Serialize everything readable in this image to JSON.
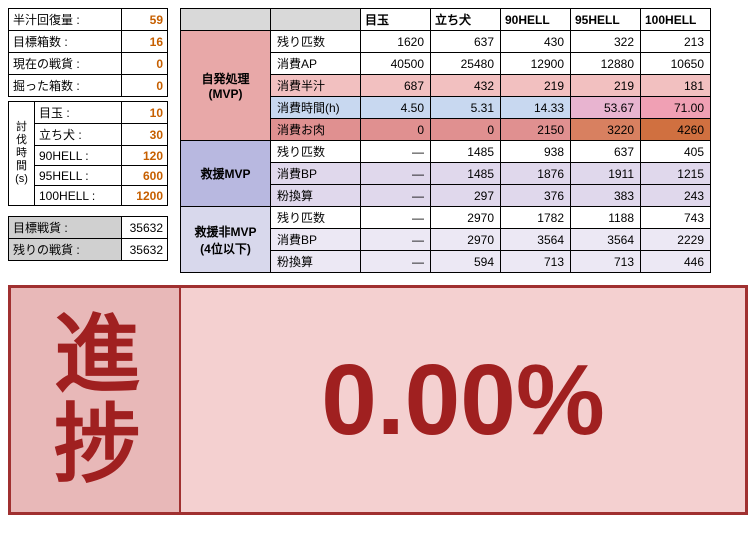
{
  "left": {
    "params": [
      {
        "label": "半汁回復量 :",
        "value": 59
      },
      {
        "label": "目標箱数 :",
        "value": 16
      },
      {
        "label": "現在の戦貨 :",
        "value": 0
      },
      {
        "label": "掘った箱数 :",
        "value": 0
      }
    ],
    "time_header": "討\n伐\n時\n間\n(s)",
    "times": [
      {
        "label": "目玉 :",
        "value": 10
      },
      {
        "label": "立ち犬 :",
        "value": 30
      },
      {
        "label": "90HELL :",
        "value": 120
      },
      {
        "label": "95HELL :",
        "value": 600
      },
      {
        "label": "100HELL :",
        "value": 1200
      }
    ],
    "totals": [
      {
        "label": "目標戦貨 :",
        "value": 35632
      },
      {
        "label": "残りの戦貨 :",
        "value": 35632
      }
    ]
  },
  "main": {
    "columns": [
      "目玉",
      "立ち犬",
      "90HELL",
      "95HELL",
      "100HELL"
    ],
    "sections": [
      {
        "title": "自発処理\n(MVP)",
        "style": "sec-mvp",
        "rows": [
          {
            "label": "残り匹数",
            "cells": [
              "1620",
              "637",
              "430",
              "322",
              "213"
            ],
            "cls": ""
          },
          {
            "label": "消費AP",
            "cells": [
              "40500",
              "25480",
              "12900",
              "12880",
              "10650"
            ],
            "cls": ""
          },
          {
            "label": "消費半汁",
            "cells": [
              "687",
              "432",
              "219",
              "219",
              "181"
            ],
            "cls": "row-pink"
          },
          {
            "label": "消費時間(h)",
            "cells": [
              "4.50",
              "5.31",
              "14.33",
              "53.67",
              "71.00"
            ],
            "cls": "row-blue",
            "cellcls": [
              "",
              "",
              "",
              "warn1",
              "warn2"
            ]
          },
          {
            "label": "消費お肉",
            "cells": [
              "0",
              "0",
              "2150",
              "3220",
              "4260"
            ],
            "cls": "row-red",
            "cellcls": [
              "",
              "",
              "",
              "hot1",
              "hot2"
            ]
          }
        ]
      },
      {
        "title": "救援MVP",
        "style": "sec-rmvp",
        "rows": [
          {
            "label": "残り匹数",
            "cells": [
              "—",
              "1485",
              "938",
              "637",
              "405"
            ],
            "cls": ""
          },
          {
            "label": "消費BP",
            "cells": [
              "—",
              "1485",
              "1876",
              "1911",
              "1215"
            ],
            "cls": "row-lpur"
          },
          {
            "label": "粉換算",
            "cells": [
              "—",
              "297",
              "376",
              "383",
              "243"
            ],
            "cls": "row-lpur"
          }
        ]
      },
      {
        "title": "救援非MVP\n(4位以下)",
        "style": "sec-nrmvp",
        "rows": [
          {
            "label": "残り匹数",
            "cells": [
              "—",
              "2970",
              "1782",
              "1188",
              "743"
            ],
            "cls": ""
          },
          {
            "label": "消費BP",
            "cells": [
              "—",
              "2970",
              "3564",
              "3564",
              "2229"
            ],
            "cls": "row-lpur2"
          },
          {
            "label": "粉換算",
            "cells": [
              "—",
              "594",
              "713",
              "713",
              "446"
            ],
            "cls": "row-lpur2"
          }
        ]
      }
    ]
  },
  "progress": {
    "label_line1": "進",
    "label_line2": "捗",
    "value": "0.00%"
  },
  "colors": {
    "accent_border": "#a03030",
    "accent_text": "#a02020",
    "progress_bg": "#f4d0d0",
    "progress_label_bg": "#e8b8b8",
    "value_orange": "#c65f00"
  }
}
